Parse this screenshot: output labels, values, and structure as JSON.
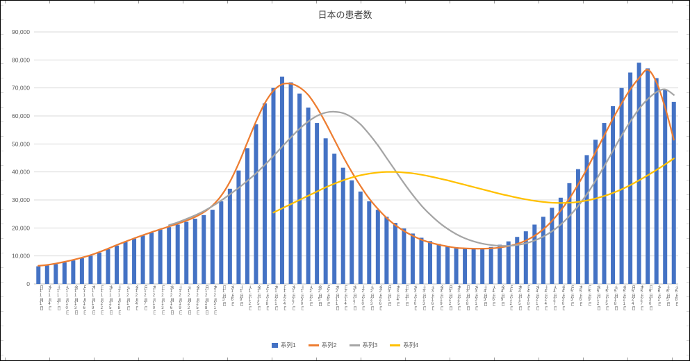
{
  "chart": {
    "background": "#ffffff",
    "grid_color": "#d9d9d9",
    "axis_line_color": "#bfbfbf",
    "axis_text_color": "#595959",
    "title_color": "#404040"
  },
  "chart_data": {
    "type": "bar",
    "title": "日本の患者数",
    "xlabel": "",
    "ylabel": "",
    "ylim": [
      0,
      90000
    ],
    "ytick_step": 10000,
    "grid": true,
    "legend_position": "bottom",
    "categories": [
      "日11月1日",
      "水11月4日",
      "土11月7日",
      "火11月10日",
      "金11月13日",
      "月11月16日",
      "木11月19日",
      "日11月22日",
      "水11月25日",
      "土11月28日",
      "火12月1日",
      "金12月4日",
      "月12月7日",
      "木12月10日",
      "日12月13日",
      "水12月16日",
      "土12月19日",
      "火12月22日",
      "金12月25日",
      "月12月28日",
      "木12月31日",
      "日1月3日",
      "水1月6日",
      "土1月9日",
      "火1月12日",
      "金1月15日",
      "月1月18日",
      "木1月21日",
      "日1月24日",
      "水1月27日",
      "土1月30日",
      "火2月2日",
      "金2月5日",
      "月2月8日",
      "木2月11日",
      "日2月14日",
      "水2月17日",
      "土2月20日",
      "火2月23日",
      "金2月26日",
      "月3月1日",
      "木3月4日",
      "日3月7日",
      "水3月10日",
      "土3月13日",
      "火3月16日",
      "金3月19日",
      "月3月22日",
      "木3月25日",
      "日3月28日",
      "水3月31日",
      "土4月3日",
      "火4月6日",
      "金4月9日",
      "月4月12日",
      "木4月15日",
      "日4月18日",
      "水4月21日",
      "土4月24日",
      "火4月27日",
      "金4月30日",
      "月5月3日",
      "木5月6日",
      "日5月9日",
      "水5月12日",
      "土5月15日",
      "火5月18日",
      "金5月21日",
      "月5月24日",
      "木5月27日",
      "日5月30日",
      "水6月2日",
      "土6月5日",
      "火6月8日"
    ],
    "series": [
      {
        "name": "系列1",
        "type": "bar",
        "color": "#4472C4",
        "values": [
          6300,
          6600,
          7100,
          7700,
          8400,
          9200,
          10100,
          11200,
          12400,
          13700,
          15000,
          16200,
          17300,
          18400,
          19400,
          20300,
          21200,
          22200,
          23300,
          24600,
          26500,
          29500,
          34000,
          40500,
          48500,
          57000,
          64500,
          70000,
          74000,
          72000,
          68000,
          63000,
          57500,
          52000,
          46500,
          41500,
          37000,
          33000,
          29500,
          26500,
          24000,
          21800,
          19800,
          18000,
          16500,
          15300,
          14300,
          13600,
          13100,
          12800,
          12700,
          12800,
          13200,
          14000,
          15200,
          16800,
          18800,
          21200,
          24000,
          27200,
          30800,
          36000,
          41000,
          46000,
          51500,
          57500,
          63500,
          70000,
          75500,
          79000,
          77000,
          73500,
          69500,
          65000
        ]
      },
      {
        "name": "系列2",
        "type": "line",
        "color": "#ED7D31",
        "values": [
          6500,
          6800,
          7300,
          7900,
          8600,
          9400,
          10300,
          11400,
          12600,
          13900,
          15100,
          16300,
          17400,
          18500,
          19500,
          20500,
          21500,
          22600,
          23900,
          25600,
          28000,
          31500,
          36500,
          43000,
          50500,
          58000,
          64500,
          69000,
          71300,
          71500,
          70200,
          67500,
          63000,
          57500,
          51500,
          45500,
          40000,
          35000,
          30500,
          26800,
          23600,
          21000,
          18900,
          17200,
          15800,
          14800,
          14000,
          13400,
          12900,
          12700,
          12600,
          12600,
          12700,
          13000,
          13500,
          14300,
          15500,
          17200,
          19500,
          22500,
          26200,
          30500,
          35500,
          41000,
          47000,
          53000,
          59000,
          64500,
          69500,
          73500,
          76500,
          72000,
          63000,
          51500
        ]
      },
      {
        "name": "系列3",
        "type": "line",
        "color": "#A5A5A5",
        "values": [
          null,
          null,
          null,
          null,
          null,
          null,
          null,
          null,
          null,
          null,
          null,
          null,
          null,
          null,
          null,
          21000,
          22000,
          23200,
          24500,
          26000,
          27800,
          29800,
          32000,
          34300,
          36800,
          39500,
          42500,
          45700,
          49000,
          52300,
          55400,
          58000,
          60000,
          61200,
          61500,
          61000,
          59500,
          57000,
          53500,
          49500,
          45000,
          40500,
          36000,
          31800,
          28000,
          24800,
          22000,
          19700,
          17800,
          16300,
          15200,
          14400,
          13900,
          13600,
          13600,
          13900,
          14500,
          15500,
          16900,
          18800,
          21200,
          24200,
          27800,
          32000,
          36800,
          42000,
          47500,
          53000,
          58000,
          62500,
          66000,
          68500,
          69500,
          67500
        ]
      },
      {
        "name": "系列4",
        "type": "line",
        "color": "#FFC000",
        "values": [
          null,
          null,
          null,
          null,
          null,
          null,
          null,
          null,
          null,
          null,
          null,
          null,
          null,
          null,
          null,
          null,
          null,
          null,
          null,
          null,
          null,
          null,
          null,
          null,
          null,
          null,
          null,
          25500,
          27000,
          28500,
          30000,
          31500,
          33000,
          34500,
          35800,
          37000,
          38000,
          38800,
          39400,
          39800,
          40000,
          40000,
          39800,
          39500,
          39000,
          38400,
          37700,
          37000,
          36200,
          35400,
          34600,
          33800,
          33000,
          32200,
          31500,
          30800,
          30200,
          29700,
          29300,
          29000,
          28900,
          29000,
          29300,
          29800,
          30500,
          31400,
          32500,
          33800,
          35300,
          37000,
          38800,
          40700,
          42700,
          44800
        ]
      }
    ]
  }
}
